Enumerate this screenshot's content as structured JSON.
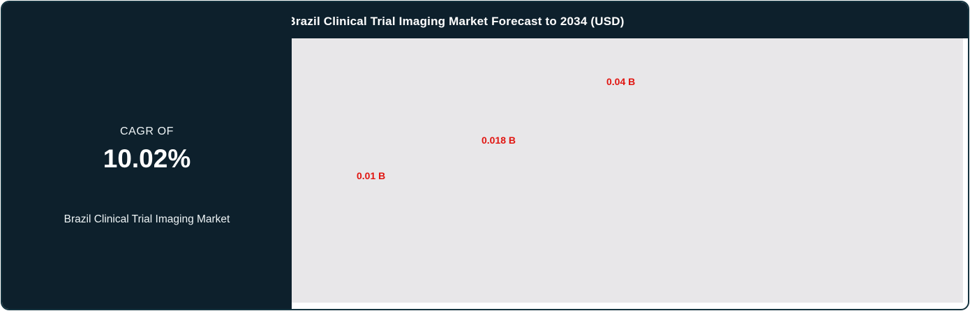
{
  "header": {
    "title": "Brazil Clinical Trial Imaging Market Forecast to 2034 (USD)"
  },
  "left_panel": {
    "cagr_label": "CAGR OF",
    "cagr_value": "10.02%",
    "market_name": "Brazil Clinical Trial Imaging Market"
  },
  "colors": {
    "card_background": "#0d202c",
    "card_border": "#14333f",
    "plot_background": "#e8e7e9",
    "data_label": "#e11510",
    "text": "#ffffff"
  },
  "chart_data": {
    "type": "bar",
    "title": "Brazil Clinical Trial Imaging Market Forecast to 2034 (USD)",
    "unit": "USD billions",
    "cagr": "10.02%",
    "points": [
      {
        "label": "0.01 B",
        "value": 0.01
      },
      {
        "label": "0.018 B",
        "value": 0.018
      },
      {
        "label": "0.04 B",
        "value": 0.04
      }
    ],
    "layout": {
      "legend": "none",
      "grid": "off",
      "axis_labels": "none",
      "data_labels_ascending_left_to_right": true
    }
  }
}
